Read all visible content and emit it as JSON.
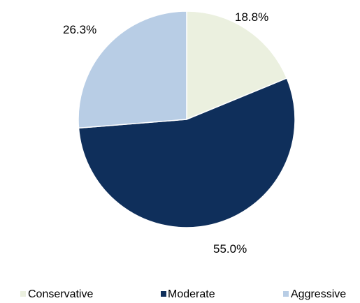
{
  "chart_data": {
    "type": "pie",
    "categories": [
      "Conservative",
      "Moderate",
      "Aggressive"
    ],
    "values": [
      18.8,
      55.0,
      26.3
    ],
    "labels": [
      "18.8%",
      "55.0%",
      "26.3%"
    ],
    "colors": [
      "#ebf0df",
      "#0f2f5b",
      "#b8cde5"
    ],
    "start_angle": "12 o'clock",
    "direction": "clockwise",
    "legend": {
      "position": "bottom",
      "entries": [
        "Conservative",
        "Moderate",
        "Aggressive"
      ]
    }
  }
}
